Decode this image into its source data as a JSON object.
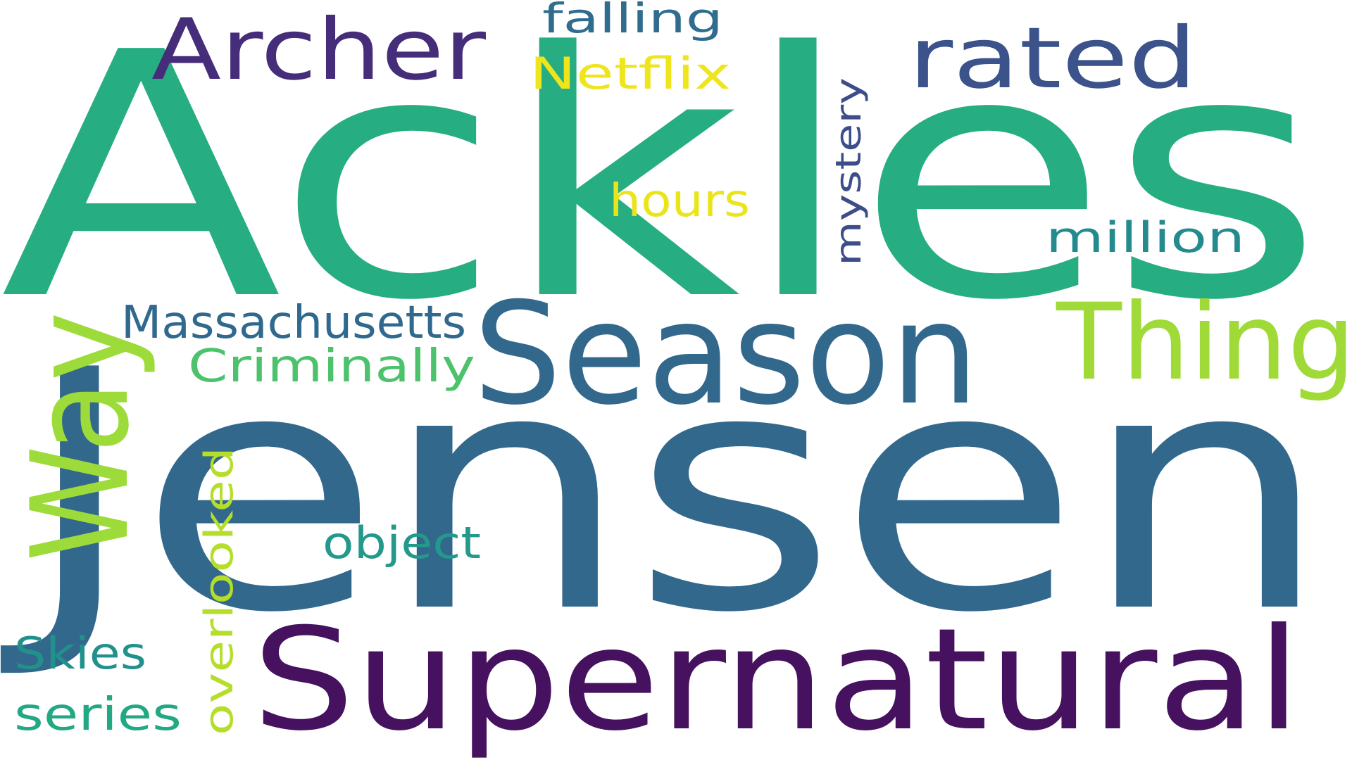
{
  "canvas": {
    "background": "#ffffff"
  },
  "words": [
    {
      "key": "ackles",
      "text": "Ackles",
      "color": "#26ad81",
      "rotation": "horizontal"
    },
    {
      "key": "jensen",
      "text": "Jensen",
      "color": "#33688d",
      "rotation": "horizontal"
    },
    {
      "key": "supernatural",
      "text": "Supernatural",
      "color": "#46115e",
      "rotation": "horizontal"
    },
    {
      "key": "season",
      "text": "Season",
      "color": "#33688d",
      "rotation": "horizontal"
    },
    {
      "key": "thing",
      "text": "Thing",
      "color": "#a0da39",
      "rotation": "horizontal"
    },
    {
      "key": "way",
      "text": "Way",
      "color": "#9ddb3a",
      "rotation": "vertical"
    },
    {
      "key": "archer",
      "text": "Archer",
      "color": "#452d7a",
      "rotation": "horizontal"
    },
    {
      "key": "rated",
      "text": "rated",
      "color": "#3b528b",
      "rotation": "horizontal"
    },
    {
      "key": "falling",
      "text": "falling",
      "color": "#2f6c8e",
      "rotation": "horizontal"
    },
    {
      "key": "netflix",
      "text": "Netflix",
      "color": "#efe51c",
      "rotation": "horizontal"
    },
    {
      "key": "mystery",
      "text": "mystery",
      "color": "#3d4d8a",
      "rotation": "vertical"
    },
    {
      "key": "hours",
      "text": "hours",
      "color": "#eae51a",
      "rotation": "horizontal"
    },
    {
      "key": "million",
      "text": "million",
      "color": "#238a8d",
      "rotation": "horizontal"
    },
    {
      "key": "massachusetts",
      "text": "Massachusetts",
      "color": "#30698e",
      "rotation": "horizontal"
    },
    {
      "key": "criminally",
      "text": "Criminally",
      "color": "#4cc26c",
      "rotation": "horizontal"
    },
    {
      "key": "object",
      "text": "object",
      "color": "#23988b",
      "rotation": "horizontal"
    },
    {
      "key": "overlooked",
      "text": "overlooked",
      "color": "#b5de2b",
      "rotation": "vertical"
    },
    {
      "key": "skies",
      "text": "Skies",
      "color": "#21918c",
      "rotation": "horizontal"
    },
    {
      "key": "series",
      "text": "series",
      "color": "#23a884",
      "rotation": "horizontal"
    }
  ]
}
